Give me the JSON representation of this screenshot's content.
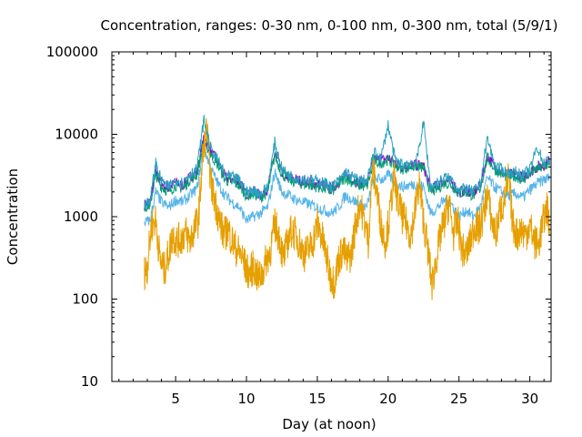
{
  "chart_data": {
    "type": "line",
    "title": "Concentration, ranges: 0-30 nm, 0-100 nm, 0-300 nm, total (5/9/1)",
    "xlabel": "Day (at noon)",
    "ylabel": "Concentration",
    "xlim": [
      0.5,
      31.5
    ],
    "ylim": [
      10,
      100000
    ],
    "yscale": "log",
    "grid": false,
    "x_ticks": [
      5,
      10,
      15,
      20,
      25,
      30
    ],
    "x_tick_labels": [
      "5",
      "10",
      "15",
      "20",
      "25",
      "30"
    ],
    "y_ticks": [
      10,
      100,
      1000,
      10000,
      100000
    ],
    "y_tick_labels": [
      "10",
      "100",
      "1000",
      "10000",
      "100000"
    ],
    "series": [
      {
        "color": "#9400d3",
        "x": [
          2.8,
          3.2,
          3.6,
          4.0,
          4.5,
          5.0,
          5.5,
          6.0,
          6.5,
          7.0,
          7.5,
          8.0,
          8.5,
          9.0,
          9.5,
          10.0,
          10.5,
          11.0,
          11.5,
          12.0,
          12.5,
          13.0,
          13.5,
          14.0,
          14.5,
          15.0,
          15.5,
          16.0,
          16.5,
          17.0,
          17.5,
          18.0,
          18.5,
          19.0,
          19.5,
          20.0,
          20.5,
          21.0,
          21.5,
          22.0,
          22.5,
          23.0,
          23.5,
          24.0,
          24.5,
          25.0,
          25.5,
          26.0,
          26.5,
          27.0,
          27.5,
          28.0,
          28.5,
          29.0,
          29.5,
          30.0,
          30.5,
          31.0,
          31.4
        ],
        "y": [
          1400,
          1500,
          3500,
          2500,
          2200,
          2600,
          2400,
          3000,
          3500,
          9000,
          6000,
          4500,
          3000,
          2800,
          2600,
          1900,
          2000,
          1800,
          2200,
          6000,
          3500,
          3000,
          2800,
          2700,
          2600,
          2500,
          2400,
          2200,
          2600,
          3200,
          2800,
          2600,
          2500,
          5000,
          4800,
          5200,
          4500,
          4000,
          4200,
          4300,
          4100,
          2200,
          2400,
          2800,
          2600,
          2000,
          2100,
          1900,
          2400,
          5500,
          4000,
          3500,
          3200,
          3300,
          3000,
          3500,
          4000,
          4200,
          4800
        ]
      },
      {
        "color": "#009e73",
        "x": [
          2.8,
          3.2,
          3.6,
          4.0,
          4.5,
          5.0,
          5.5,
          6.0,
          6.5,
          7.0,
          7.5,
          8.0,
          8.5,
          9.0,
          9.5,
          10.0,
          10.5,
          11.0,
          11.5,
          12.0,
          12.5,
          13.0,
          13.5,
          14.0,
          14.5,
          15.0,
          15.5,
          16.0,
          16.5,
          17.0,
          17.5,
          18.0,
          18.5,
          19.0,
          19.5,
          20.0,
          20.5,
          21.0,
          21.5,
          22.0,
          22.5,
          23.0,
          23.5,
          24.0,
          24.5,
          25.0,
          25.5,
          26.0,
          26.5,
          27.0,
          27.5,
          28.0,
          28.5,
          29.0,
          29.5,
          30.0,
          30.5,
          31.0,
          31.4
        ],
        "y": [
          1300,
          1400,
          3200,
          2300,
          2000,
          2400,
          2200,
          2800,
          3200,
          8500,
          5600,
          4200,
          2800,
          2600,
          2400,
          1800,
          1900,
          1700,
          2000,
          5600,
          3300,
          2800,
          2600,
          2500,
          2400,
          2300,
          2200,
          2000,
          2400,
          3000,
          2600,
          2400,
          2300,
          4700,
          4500,
          4900,
          4200,
          3800,
          4000,
          4100,
          3900,
          2000,
          2200,
          2600,
          2400,
          1900,
          2000,
          1800,
          2200,
          5200,
          3800,
          3300,
          3000,
          3100,
          2800,
          3300,
          3800,
          4000,
          4500
        ]
      },
      {
        "color": "#56b4e9",
        "x": [
          2.8,
          3.2,
          3.6,
          4.0,
          4.5,
          5.0,
          5.5,
          6.0,
          6.5,
          7.0,
          7.5,
          8.0,
          8.5,
          9.0,
          9.5,
          10.0,
          10.5,
          11.0,
          11.5,
          12.0,
          12.5,
          13.0,
          13.5,
          14.0,
          14.5,
          15.0,
          15.5,
          16.0,
          16.5,
          17.0,
          17.5,
          18.0,
          18.5,
          19.0,
          19.5,
          20.0,
          20.5,
          21.0,
          21.5,
          22.0,
          22.5,
          23.0,
          23.5,
          24.0,
          24.5,
          25.0,
          25.5,
          26.0,
          26.5,
          27.0,
          27.5,
          28.0,
          28.5,
          29.0,
          29.5,
          30.0,
          30.5,
          31.0,
          31.4
        ],
        "y": [
          850,
          900,
          2000,
          1500,
          1300,
          1600,
          1500,
          1800,
          2200,
          7000,
          3800,
          2500,
          1800,
          1500,
          1300,
          900,
          1000,
          1100,
          1300,
          3500,
          2000,
          1800,
          1600,
          1500,
          1400,
          1300,
          1200,
          1100,
          1300,
          1800,
          1600,
          1400,
          1300,
          3000,
          2800,
          3200,
          2600,
          2300,
          2400,
          2500,
          2300,
          1100,
          1300,
          1600,
          1400,
          1000,
          1200,
          1000,
          1300,
          3000,
          2300,
          2000,
          1800,
          1900,
          1700,
          2100,
          2500,
          2800,
          3000
        ]
      },
      {
        "color": "#e69f00",
        "x": [
          2.8,
          3.0,
          3.3,
          3.6,
          3.9,
          4.2,
          4.5,
          4.8,
          5.1,
          5.4,
          5.7,
          6.0,
          6.3,
          6.6,
          6.9,
          7.2,
          7.5,
          7.8,
          8.1,
          8.4,
          8.7,
          9.0,
          9.3,
          9.6,
          9.9,
          10.2,
          10.5,
          10.8,
          11.1,
          11.4,
          11.7,
          12.0,
          12.3,
          12.6,
          12.9,
          13.2,
          13.5,
          13.8,
          14.1,
          14.4,
          14.7,
          15.0,
          15.3,
          15.6,
          15.9,
          16.2,
          16.5,
          16.8,
          17.1,
          17.4,
          17.7,
          18.0,
          18.3,
          18.6,
          18.9,
          19.2,
          19.5,
          19.8,
          20.1,
          20.4,
          20.7,
          21.0,
          21.3,
          21.6,
          21.9,
          22.2,
          22.5,
          22.8,
          23.1,
          23.4,
          23.7,
          24.0,
          24.3,
          24.6,
          24.9,
          25.2,
          25.5,
          25.8,
          26.1,
          26.4,
          26.7,
          27.0,
          27.3,
          27.6,
          27.9,
          28.2,
          28.5,
          28.8,
          29.1,
          29.4,
          29.7,
          30.0,
          30.3,
          30.6,
          30.9,
          31.2,
          31.4
        ],
        "y": [
          210,
          250,
          800,
          900,
          300,
          220,
          350,
          600,
          500,
          550,
          650,
          500,
          700,
          900,
          5000,
          12000,
          2500,
          1500,
          900,
          600,
          700,
          500,
          400,
          350,
          250,
          200,
          250,
          180,
          200,
          300,
          400,
          800,
          600,
          300,
          500,
          700,
          600,
          450,
          350,
          400,
          500,
          800,
          600,
          350,
          200,
          160,
          300,
          400,
          300,
          350,
          800,
          1500,
          900,
          500,
          4000,
          2000,
          800,
          500,
          1000,
          3000,
          1500,
          1000,
          800,
          600,
          1200,
          2500,
          900,
          400,
          150,
          300,
          600,
          900,
          1500,
          600,
          900,
          400,
          350,
          500,
          800,
          700,
          1000,
          2000,
          900,
          600,
          1200,
          1500,
          3000,
          800,
          600,
          700,
          600,
          800,
          500,
          450,
          800,
          1300,
          700
        ]
      },
      {
        "color": "#2aa0c0",
        "x": [
          2.8,
          3.2,
          3.6,
          4.0,
          4.5,
          5.0,
          5.5,
          6.0,
          6.5,
          7.0,
          7.5,
          8.0,
          8.5,
          9.0,
          9.5,
          10.0,
          10.5,
          11.0,
          11.5,
          12.0,
          12.5,
          13.0,
          13.5,
          14.0,
          14.5,
          15.0,
          15.5,
          16.0,
          16.5,
          17.0,
          17.5,
          18.0,
          18.5,
          19.0,
          19.5,
          20.0,
          20.5,
          21.0,
          21.5,
          22.0,
          22.5,
          23.0,
          23.5,
          24.0,
          24.5,
          25.0,
          25.5,
          26.0,
          26.5,
          27.0,
          27.5,
          28.0,
          28.5,
          29.0,
          29.5,
          30.0,
          30.5,
          31.0,
          31.4
        ],
        "y": [
          1450,
          1550,
          4500,
          2700,
          2300,
          2800,
          2600,
          3300,
          3800,
          15000,
          6500,
          4800,
          3200,
          3000,
          2800,
          2000,
          2100,
          1900,
          2300,
          8000,
          3800,
          3200,
          3000,
          2900,
          2800,
          2700,
          2600,
          2300,
          2700,
          3500,
          3000,
          2800,
          2700,
          6000,
          5200,
          13000,
          4800,
          4300,
          4500,
          4600,
          14000,
          2300,
          2600,
          3000,
          2800,
          2100,
          2200,
          2000,
          2500,
          9000,
          4300,
          3700,
          3400,
          3500,
          3200,
          3700,
          7000,
          4500,
          5000
        ]
      }
    ]
  }
}
